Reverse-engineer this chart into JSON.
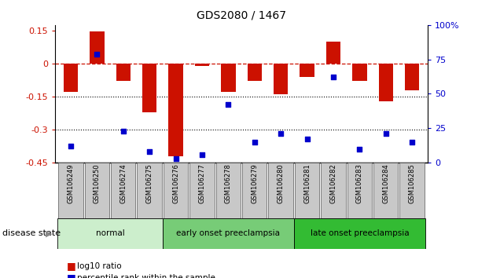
{
  "title": "GDS2080 / 1467",
  "samples": [
    "GSM106249",
    "GSM106250",
    "GSM106274",
    "GSM106275",
    "GSM106276",
    "GSM106277",
    "GSM106278",
    "GSM106279",
    "GSM106280",
    "GSM106281",
    "GSM106282",
    "GSM106283",
    "GSM106284",
    "GSM106285"
  ],
  "log10_ratio": [
    -0.13,
    0.145,
    -0.08,
    -0.22,
    -0.42,
    -0.01,
    -0.13,
    -0.08,
    -0.14,
    -0.06,
    0.1,
    -0.08,
    -0.17,
    -0.12
  ],
  "percentile_rank": [
    12,
    79,
    23,
    8,
    3,
    6,
    42,
    15,
    21,
    17,
    62,
    10,
    21,
    15
  ],
  "bar_color": "#cc1100",
  "dot_color": "#0000cc",
  "ylim_left": [
    -0.45,
    0.175
  ],
  "ylim_right": [
    0,
    100
  ],
  "yticks_left": [
    -0.45,
    -0.3,
    -0.15,
    0,
    0.15
  ],
  "yticks_right": [
    0,
    25,
    50,
    75,
    100
  ],
  "legend_labels": [
    "log10 ratio",
    "percentile rank within the sample"
  ],
  "disease_label": "disease state",
  "group_colors": [
    "#cceecc",
    "#77cc77",
    "#33bb33"
  ],
  "group_labels": [
    "normal",
    "early onset preeclampsia",
    "late onset preeclampsia"
  ],
  "group_ranges": [
    [
      0,
      3
    ],
    [
      4,
      8
    ],
    [
      9,
      13
    ]
  ]
}
